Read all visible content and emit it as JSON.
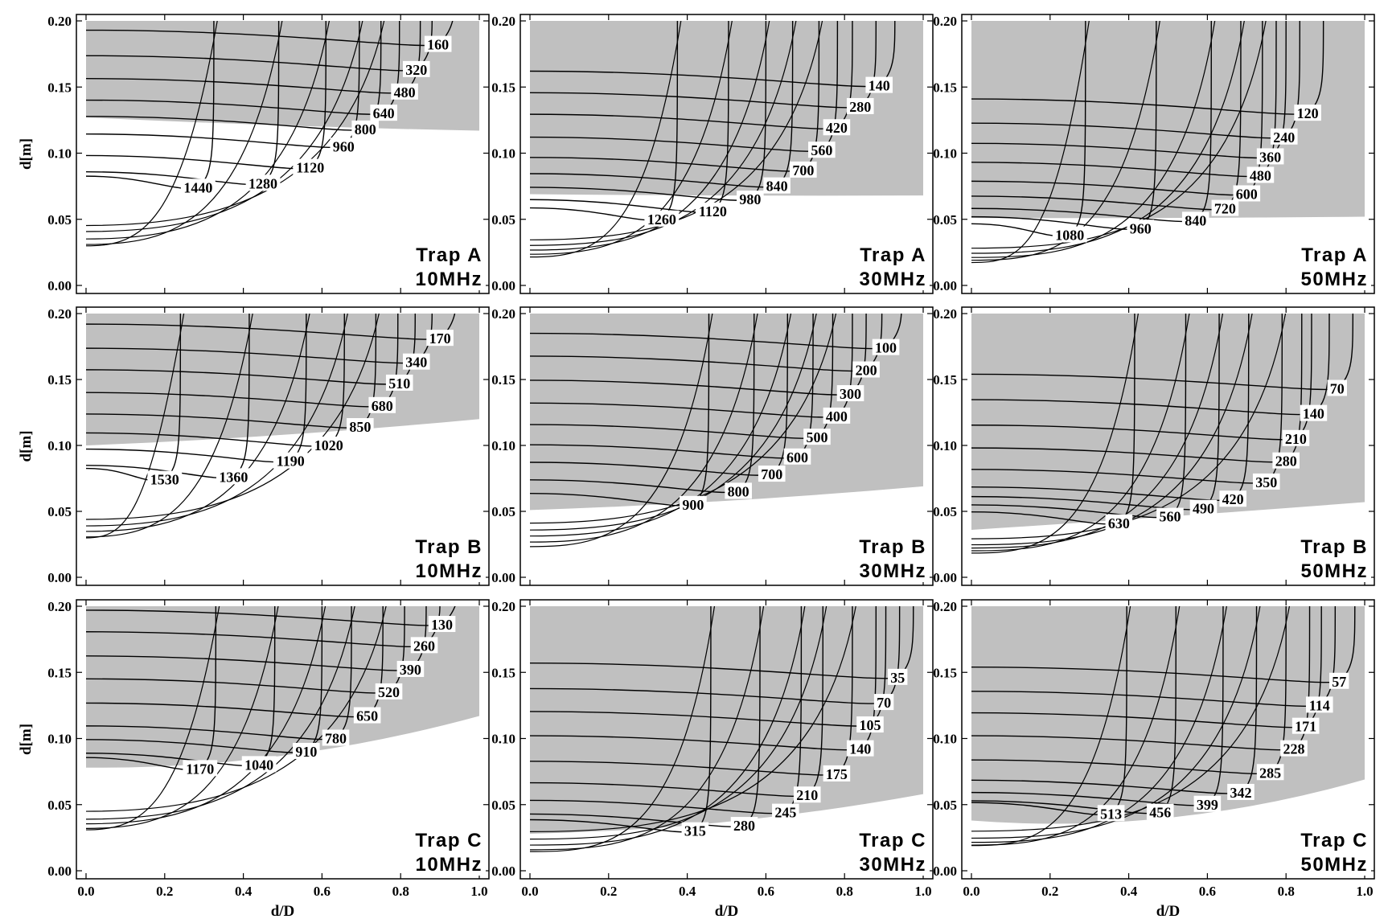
{
  "colors": {
    "stable_region": "#c0c0c0",
    "contour": "#000000",
    "background": "#ffffff"
  },
  "chart_data": {
    "type": "contour",
    "x_label": "d/D",
    "y_label": "d[m]",
    "xlim": [
      0,
      1
    ],
    "ylim": [
      0,
      0.2
    ],
    "x_ticks": [
      "0.0",
      "0.2",
      "0.4",
      "0.6",
      "0.8",
      "1.0"
    ],
    "y_ticks": [
      "0.00",
      "0.05",
      "0.10",
      "0.15",
      "0.20"
    ],
    "panels": [
      {
        "trap": "Trap A",
        "freq": "10MHz",
        "contour_levels": [
          160,
          320,
          480,
          640,
          800,
          960,
          1120,
          1280,
          1440
        ],
        "labels": [
          {
            "text": "160",
            "x": 0.895,
            "y": 0.182
          },
          {
            "text": "320",
            "x": 0.84,
            "y": 0.163
          },
          {
            "text": "480",
            "x": 0.81,
            "y": 0.146
          },
          {
            "text": "640",
            "x": 0.757,
            "y": 0.13
          },
          {
            "text": "800",
            "x": 0.71,
            "y": 0.118
          },
          {
            "text": "960",
            "x": 0.655,
            "y": 0.105
          },
          {
            "text": "1120",
            "x": 0.57,
            "y": 0.089
          },
          {
            "text": "1280",
            "x": 0.45,
            "y": 0.077
          },
          {
            "text": "1440",
            "x": 0.285,
            "y": 0.074
          }
        ],
        "stable_boundary": [
          [
            0,
            0.127
          ],
          [
            0.5,
            0.121
          ],
          [
            1,
            0.117
          ]
        ]
      },
      {
        "trap": "Trap A",
        "freq": "30MHz",
        "contour_levels": [
          140,
          280,
          420,
          560,
          700,
          840,
          980,
          1120,
          1260
        ],
        "labels": [
          {
            "text": "140",
            "x": 0.888,
            "y": 0.151
          },
          {
            "text": "280",
            "x": 0.84,
            "y": 0.135
          },
          {
            "text": "420",
            "x": 0.78,
            "y": 0.119
          },
          {
            "text": "560",
            "x": 0.742,
            "y": 0.102
          },
          {
            "text": "700",
            "x": 0.695,
            "y": 0.087
          },
          {
            "text": "840",
            "x": 0.628,
            "y": 0.075
          },
          {
            "text": "980",
            "x": 0.56,
            "y": 0.065
          },
          {
            "text": "1120",
            "x": 0.465,
            "y": 0.056
          },
          {
            "text": "1260",
            "x": 0.335,
            "y": 0.05
          }
        ],
        "stable_boundary": [
          [
            0,
            0.069
          ],
          [
            0.5,
            0.068
          ],
          [
            1,
            0.068
          ]
        ]
      },
      {
        "trap": "Trap A",
        "freq": "50MHz",
        "contour_levels": [
          120,
          240,
          360,
          480,
          600,
          720,
          840,
          960,
          1080
        ],
        "labels": [
          {
            "text": "120",
            "x": 0.855,
            "y": 0.13
          },
          {
            "text": "240",
            "x": 0.795,
            "y": 0.112
          },
          {
            "text": "360",
            "x": 0.76,
            "y": 0.097
          },
          {
            "text": "480",
            "x": 0.735,
            "y": 0.083
          },
          {
            "text": "600",
            "x": 0.7,
            "y": 0.069
          },
          {
            "text": "720",
            "x": 0.645,
            "y": 0.058
          },
          {
            "text": "840",
            "x": 0.57,
            "y": 0.049
          },
          {
            "text": "960",
            "x": 0.43,
            "y": 0.043
          },
          {
            "text": "1080",
            "x": 0.25,
            "y": 0.038
          }
        ],
        "stable_boundary": [
          [
            0,
            0.051
          ],
          [
            0.5,
            0.051
          ],
          [
            1,
            0.052
          ]
        ]
      },
      {
        "trap": "Trap B",
        "freq": "10MHz",
        "contour_levels": [
          170,
          340,
          510,
          680,
          850,
          1020,
          1190,
          1360,
          1530
        ],
        "labels": [
          {
            "text": "170",
            "x": 0.9,
            "y": 0.181
          },
          {
            "text": "340",
            "x": 0.84,
            "y": 0.163
          },
          {
            "text": "510",
            "x": 0.797,
            "y": 0.147
          },
          {
            "text": "680",
            "x": 0.753,
            "y": 0.13
          },
          {
            "text": "850",
            "x": 0.697,
            "y": 0.114
          },
          {
            "text": "1020",
            "x": 0.617,
            "y": 0.1
          },
          {
            "text": "1190",
            "x": 0.52,
            "y": 0.088
          },
          {
            "text": "1360",
            "x": 0.375,
            "y": 0.076
          },
          {
            "text": "1530",
            "x": 0.2,
            "y": 0.074
          }
        ],
        "stable_boundary": [
          [
            0,
            0.1
          ],
          [
            0.5,
            0.108
          ],
          [
            1,
            0.12
          ]
        ]
      },
      {
        "trap": "Trap B",
        "freq": "30MHz",
        "contour_levels": [
          100,
          200,
          300,
          400,
          500,
          600,
          700,
          800,
          900
        ],
        "labels": [
          {
            "text": "100",
            "x": 0.905,
            "y": 0.174
          },
          {
            "text": "200",
            "x": 0.855,
            "y": 0.157
          },
          {
            "text": "300",
            "x": 0.815,
            "y": 0.139
          },
          {
            "text": "400",
            "x": 0.78,
            "y": 0.122
          },
          {
            "text": "500",
            "x": 0.73,
            "y": 0.106
          },
          {
            "text": "600",
            "x": 0.68,
            "y": 0.091
          },
          {
            "text": "700",
            "x": 0.615,
            "y": 0.078
          },
          {
            "text": "800",
            "x": 0.53,
            "y": 0.065
          },
          {
            "text": "900",
            "x": 0.415,
            "y": 0.055
          }
        ],
        "stable_boundary": [
          [
            0,
            0.051
          ],
          [
            0.5,
            0.058
          ],
          [
            1,
            0.069
          ]
        ]
      },
      {
        "trap": "Trap B",
        "freq": "50MHz",
        "contour_levels": [
          70,
          140,
          210,
          280,
          350,
          420,
          490,
          560,
          630
        ],
        "labels": [
          {
            "text": "70",
            "x": 0.93,
            "y": 0.143
          },
          {
            "text": "140",
            "x": 0.87,
            "y": 0.124
          },
          {
            "text": "210",
            "x": 0.825,
            "y": 0.105
          },
          {
            "text": "280",
            "x": 0.8,
            "y": 0.088
          },
          {
            "text": "350",
            "x": 0.75,
            "y": 0.072
          },
          {
            "text": "420",
            "x": 0.665,
            "y": 0.059
          },
          {
            "text": "490",
            "x": 0.59,
            "y": 0.052
          },
          {
            "text": "560",
            "x": 0.505,
            "y": 0.046
          },
          {
            "text": "630",
            "x": 0.375,
            "y": 0.041
          }
        ],
        "stable_boundary": [
          [
            0,
            0.036
          ],
          [
            0.5,
            0.046
          ],
          [
            1,
            0.057
          ]
        ]
      },
      {
        "trap": "Trap C",
        "freq": "10MHz",
        "contour_levels": [
          130,
          260,
          390,
          520,
          650,
          780,
          910,
          1040,
          1170
        ],
        "labels": [
          {
            "text": "130",
            "x": 0.905,
            "y": 0.186
          },
          {
            "text": "260",
            "x": 0.86,
            "y": 0.17
          },
          {
            "text": "390",
            "x": 0.825,
            "y": 0.152
          },
          {
            "text": "520",
            "x": 0.77,
            "y": 0.135
          },
          {
            "text": "650",
            "x": 0.715,
            "y": 0.117
          },
          {
            "text": "780",
            "x": 0.635,
            "y": 0.1
          },
          {
            "text": "910",
            "x": 0.56,
            "y": 0.09
          },
          {
            "text": "1040",
            "x": 0.44,
            "y": 0.08
          },
          {
            "text": "1170",
            "x": 0.29,
            "y": 0.077
          }
        ],
        "stable_boundary": [
          [
            0,
            0.078
          ],
          [
            0.5,
            0.087
          ],
          [
            1,
            0.117
          ]
        ]
      },
      {
        "trap": "Trap C",
        "freq": "30MHz",
        "contour_levels": [
          35,
          70,
          105,
          140,
          175,
          210,
          245,
          280,
          315
        ],
        "labels": [
          {
            "text": "35",
            "x": 0.935,
            "y": 0.146
          },
          {
            "text": "70",
            "x": 0.9,
            "y": 0.127
          },
          {
            "text": "105",
            "x": 0.865,
            "y": 0.11
          },
          {
            "text": "140",
            "x": 0.84,
            "y": 0.092
          },
          {
            "text": "175",
            "x": 0.78,
            "y": 0.073
          },
          {
            "text": "210",
            "x": 0.705,
            "y": 0.057
          },
          {
            "text": "245",
            "x": 0.65,
            "y": 0.044
          },
          {
            "text": "280",
            "x": 0.545,
            "y": 0.034
          },
          {
            "text": "315",
            "x": 0.42,
            "y": 0.03
          }
        ],
        "stable_boundary": [
          [
            0,
            0.028
          ],
          [
            0.5,
            0.037
          ],
          [
            1,
            0.058
          ]
        ]
      },
      {
        "trap": "Trap C",
        "freq": "50MHz",
        "contour_levels": [
          57,
          114,
          171,
          228,
          285,
          342,
          399,
          456,
          513
        ],
        "labels": [
          {
            "text": "57",
            "x": 0.935,
            "y": 0.143
          },
          {
            "text": "114",
            "x": 0.885,
            "y": 0.125
          },
          {
            "text": "171",
            "x": 0.85,
            "y": 0.109
          },
          {
            "text": "228",
            "x": 0.82,
            "y": 0.092
          },
          {
            "text": "285",
            "x": 0.76,
            "y": 0.074
          },
          {
            "text": "342",
            "x": 0.685,
            "y": 0.059
          },
          {
            "text": "399",
            "x": 0.6,
            "y": 0.05
          },
          {
            "text": "456",
            "x": 0.48,
            "y": 0.044
          },
          {
            "text": "513",
            "x": 0.355,
            "y": 0.043
          }
        ],
        "stable_boundary": [
          [
            0,
            0.038
          ],
          [
            0.5,
            0.04
          ],
          [
            1,
            0.069
          ]
        ]
      }
    ]
  }
}
